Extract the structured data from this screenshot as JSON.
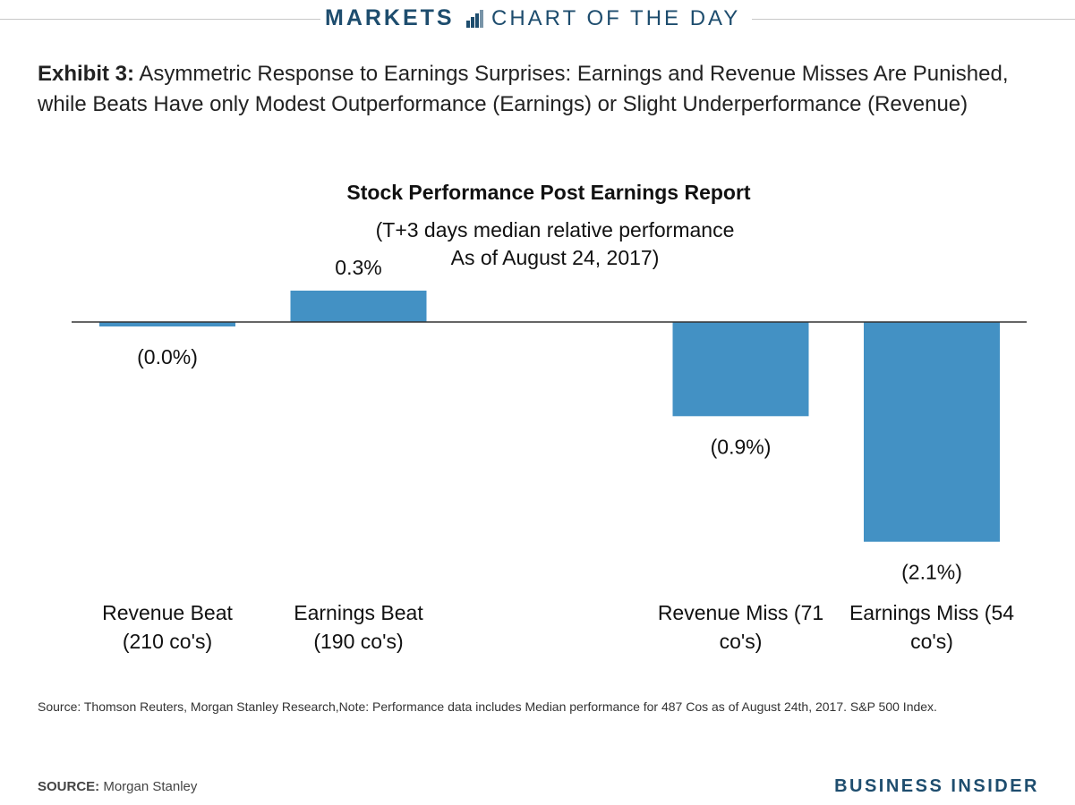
{
  "banner": {
    "section": "MARKETS",
    "subtitle": "CHART OF THE DAY",
    "icon": "bar-chart-icon"
  },
  "exhibit": {
    "label": "Exhibit 3:",
    "title": "Asymmetric Response to Earnings Surprises: Earnings and Revenue Misses Are Punished, while Beats Have only Modest Outperformance (Earnings) or Slight Underperformance (Revenue)"
  },
  "chart_data": {
    "type": "bar",
    "title": "Stock Performance Post Earnings Report",
    "subtitle_lines": [
      "(T+3 days median relative performance",
      "As of August 24, 2017)"
    ],
    "categories": [
      [
        "Revenue Beat",
        "(210 co's)"
      ],
      [
        "Earnings Beat",
        "(190 co's)"
      ],
      [
        "",
        ""
      ],
      [
        "Revenue Miss (71",
        "co's)"
      ],
      [
        "Earnings Miss (54",
        "co's)"
      ]
    ],
    "values": [
      -0.02,
      0.3,
      null,
      -0.9,
      -2.1
    ],
    "value_labels": [
      "(0.0%)",
      "0.3%",
      "",
      "(0.9%)",
      "(2.1%)"
    ],
    "bar_color": "#4391c4",
    "ylim": [
      -2.1,
      0.3
    ],
    "grid": false,
    "xlabel": "",
    "ylabel": ""
  },
  "footer": {
    "note": "Source: Thomson Reuters, Morgan Stanley Research,Note: Performance data includes Median performance for 487 Cos as of August 24th, 2017. S&P 500 Index.",
    "source_label": "SOURCE:",
    "source_value": "Morgan Stanley",
    "brand": "BUSINESS INSIDER"
  }
}
